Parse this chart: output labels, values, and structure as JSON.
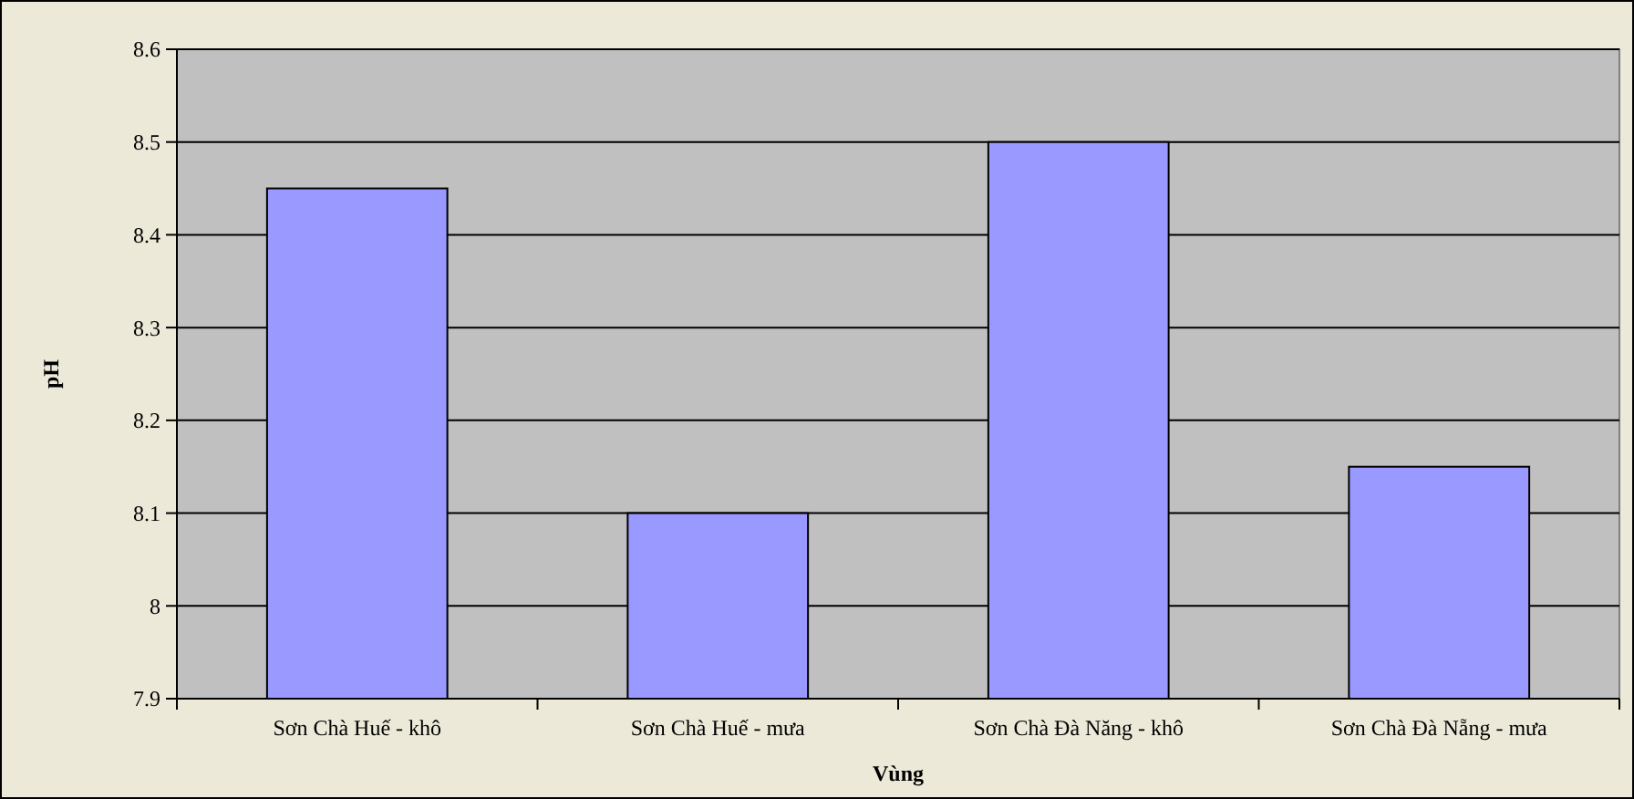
{
  "chart_data": {
    "type": "bar",
    "xlabel": "Vùng",
    "ylabel": "pH",
    "categories": [
      "Sơn Chà Huế - khô",
      "Sơn Chà Huế - mưa",
      "Sơn Chà Đà Năng - khô",
      "Sơn Chà Đà Nẵng - mưa"
    ],
    "values": [
      8.45,
      8.1,
      8.5,
      8.15
    ],
    "color": "#9999ff",
    "ylim": [
      7.9,
      8.6
    ],
    "yticks": [
      7.9,
      {
        "value": 8,
        "label": "8"
      },
      8.1,
      8.2,
      8.3,
      8.4,
      8.5,
      8.6
    ],
    "grid": "y"
  }
}
